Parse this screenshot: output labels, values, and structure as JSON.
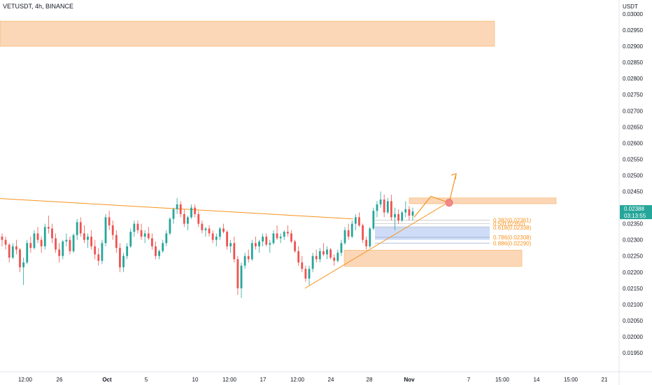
{
  "header": {
    "symbol_title": "VETUSDT, 4h, BINANCE"
  },
  "colors": {
    "up": "#26a69a",
    "down": "#ef5350",
    "accent": "#f7931e",
    "zone_fill": "#f9c9a0",
    "fib_blue": "#c5d6f6",
    "axis": "#131722"
  },
  "chart_data": {
    "type": "candlestick",
    "title": "VETUSDT, 4h, BINANCE",
    "ylabel": "USDT",
    "ylim": [
      0.0195,
      0.0302
    ],
    "y_ticks": [
      "0.03000",
      "0.02950",
      "0.02900",
      "0.02850",
      "0.02800",
      "0.02750",
      "0.02700",
      "0.02650",
      "0.02600",
      "0.02550",
      "0.02500",
      "0.02450",
      "0.02400",
      "0.02350",
      "0.02300",
      "0.02250",
      "0.02200",
      "0.02150",
      "0.02100",
      "0.02050",
      "0.02000",
      "0.01950"
    ],
    "x_ticks": [
      "12:00",
      "26",
      "Oct",
      "5",
      "10",
      "12:00",
      "17",
      "12:00",
      "24",
      "28",
      "Nov",
      "7",
      "15:00",
      "14",
      "15:00",
      "21"
    ],
    "current_price": "0.02388",
    "countdown": "03:13:55",
    "candles": [
      [
        0.0231,
        0.0232,
        0.0228,
        0.023
      ],
      [
        0.023,
        0.0231,
        0.0227,
        0.02285
      ],
      [
        0.02285,
        0.0229,
        0.0223,
        0.02245
      ],
      [
        0.02245,
        0.0229,
        0.0224,
        0.0228
      ],
      [
        0.0228,
        0.023,
        0.02255,
        0.0227
      ],
      [
        0.0227,
        0.02275,
        0.022,
        0.02215
      ],
      [
        0.02215,
        0.02245,
        0.0216,
        0.0223
      ],
      [
        0.0223,
        0.023,
        0.02225,
        0.0229
      ],
      [
        0.0229,
        0.0231,
        0.0226,
        0.02275
      ],
      [
        0.02275,
        0.0233,
        0.0227,
        0.0232
      ],
      [
        0.0232,
        0.0234,
        0.0229,
        0.023
      ],
      [
        0.023,
        0.0231,
        0.0226,
        0.0228
      ],
      [
        0.0228,
        0.0235,
        0.0227,
        0.0234
      ],
      [
        0.0234,
        0.02375,
        0.0232,
        0.02335
      ],
      [
        0.02335,
        0.0235,
        0.0229,
        0.02305
      ],
      [
        0.02305,
        0.0232,
        0.0226,
        0.0227
      ],
      [
        0.0227,
        0.0229,
        0.0223,
        0.0225
      ],
      [
        0.0225,
        0.023,
        0.0224,
        0.02295
      ],
      [
        0.02295,
        0.0232,
        0.0228,
        0.023
      ],
      [
        0.023,
        0.0231,
        0.02255,
        0.02265
      ],
      [
        0.02265,
        0.0232,
        0.0226,
        0.02315
      ],
      [
        0.02315,
        0.02365,
        0.023,
        0.02355
      ],
      [
        0.02355,
        0.0237,
        0.0231,
        0.0232
      ],
      [
        0.0232,
        0.02345,
        0.0229,
        0.023
      ],
      [
        0.023,
        0.0232,
        0.02275,
        0.0231
      ],
      [
        0.0231,
        0.0233,
        0.0227,
        0.0228
      ],
      [
        0.0228,
        0.023,
        0.0224,
        0.02255
      ],
      [
        0.02255,
        0.02275,
        0.0222,
        0.02235
      ],
      [
        0.02235,
        0.023,
        0.02225,
        0.0229
      ],
      [
        0.0229,
        0.0238,
        0.0228,
        0.0237
      ],
      [
        0.0237,
        0.0239,
        0.0233,
        0.02345
      ],
      [
        0.02345,
        0.0236,
        0.023,
        0.02315
      ],
      [
        0.02315,
        0.0233,
        0.0226,
        0.02275
      ],
      [
        0.02275,
        0.0229,
        0.022,
        0.02215
      ],
      [
        0.02215,
        0.0226,
        0.022,
        0.0225
      ],
      [
        0.0225,
        0.0229,
        0.0224,
        0.0228
      ],
      [
        0.0228,
        0.02335,
        0.02275,
        0.02325
      ],
      [
        0.02325,
        0.0236,
        0.0231,
        0.0235
      ],
      [
        0.0235,
        0.0236,
        0.0232,
        0.0233
      ],
      [
        0.0233,
        0.0235,
        0.023,
        0.0231
      ],
      [
        0.0231,
        0.0233,
        0.0229,
        0.0232
      ],
      [
        0.0232,
        0.0234,
        0.023,
        0.02305
      ],
      [
        0.02305,
        0.0232,
        0.0227,
        0.0228
      ],
      [
        0.0228,
        0.02295,
        0.0224,
        0.0225
      ],
      [
        0.0225,
        0.0227,
        0.0224,
        0.02265
      ],
      [
        0.02265,
        0.023,
        0.0226,
        0.0229
      ],
      [
        0.0229,
        0.0233,
        0.0228,
        0.0232
      ],
      [
        0.0232,
        0.0237,
        0.02315,
        0.02365
      ],
      [
        0.02365,
        0.024,
        0.0235,
        0.02395
      ],
      [
        0.02395,
        0.0243,
        0.0238,
        0.0241
      ],
      [
        0.0241,
        0.0242,
        0.0237,
        0.0238
      ],
      [
        0.0238,
        0.02395,
        0.0234,
        0.0235
      ],
      [
        0.0235,
        0.02375,
        0.0233,
        0.0237
      ],
      [
        0.0237,
        0.0241,
        0.02365,
        0.024
      ],
      [
        0.024,
        0.0241,
        0.0237,
        0.0238
      ],
      [
        0.0238,
        0.0239,
        0.0234,
        0.0235
      ],
      [
        0.0235,
        0.0236,
        0.0232,
        0.0233
      ],
      [
        0.0233,
        0.0234,
        0.0231,
        0.02335
      ],
      [
        0.02335,
        0.02345,
        0.0231,
        0.0232
      ],
      [
        0.0232,
        0.0233,
        0.0229,
        0.023
      ],
      [
        0.023,
        0.0232,
        0.0228,
        0.0231
      ],
      [
        0.0231,
        0.0234,
        0.023,
        0.02335
      ],
      [
        0.02335,
        0.0235,
        0.0232,
        0.02325
      ],
      [
        0.02325,
        0.0233,
        0.0227,
        0.0228
      ],
      [
        0.0228,
        0.023,
        0.0226,
        0.0229
      ],
      [
        0.0229,
        0.0231,
        0.0223,
        0.0224
      ],
      [
        0.0224,
        0.0225,
        0.0213,
        0.0215
      ],
      [
        0.0215,
        0.0223,
        0.0212,
        0.0222
      ],
      [
        0.0222,
        0.0226,
        0.0221,
        0.0225
      ],
      [
        0.0225,
        0.0227,
        0.0223,
        0.0224
      ],
      [
        0.0224,
        0.023,
        0.02235,
        0.0229
      ],
      [
        0.0229,
        0.0231,
        0.0227,
        0.0228
      ],
      [
        0.0228,
        0.023,
        0.0226,
        0.02295
      ],
      [
        0.02295,
        0.0232,
        0.0228,
        0.0231
      ],
      [
        0.0231,
        0.0232,
        0.0228,
        0.02285
      ],
      [
        0.02285,
        0.023,
        0.0226,
        0.0229
      ],
      [
        0.0229,
        0.0233,
        0.02285,
        0.0232
      ],
      [
        0.0232,
        0.02345,
        0.023,
        0.02305
      ],
      [
        0.02305,
        0.0232,
        0.0229,
        0.0231
      ],
      [
        0.0231,
        0.0233,
        0.023,
        0.02325
      ],
      [
        0.02325,
        0.02345,
        0.0231,
        0.0232
      ],
      [
        0.0232,
        0.0233,
        0.0229,
        0.02295
      ],
      [
        0.02295,
        0.023,
        0.0226,
        0.02265
      ],
      [
        0.02265,
        0.0228,
        0.0222,
        0.0223
      ],
      [
        0.0223,
        0.0225,
        0.022,
        0.0221
      ],
      [
        0.0221,
        0.0222,
        0.0217,
        0.0218
      ],
      [
        0.0218,
        0.0222,
        0.0216,
        0.0221
      ],
      [
        0.0221,
        0.0226,
        0.022,
        0.0225
      ],
      [
        0.0225,
        0.0227,
        0.0223,
        0.0224
      ],
      [
        0.0224,
        0.02275,
        0.0223,
        0.02265
      ],
      [
        0.02265,
        0.0229,
        0.0225,
        0.02255
      ],
      [
        0.02255,
        0.0228,
        0.0224,
        0.0227
      ],
      [
        0.0227,
        0.02275,
        0.0224,
        0.02245
      ],
      [
        0.02245,
        0.02255,
        0.0222,
        0.02235
      ],
      [
        0.02235,
        0.0227,
        0.0223,
        0.0226
      ],
      [
        0.0226,
        0.023,
        0.0225,
        0.0229
      ],
      [
        0.0229,
        0.0234,
        0.02285,
        0.0233
      ],
      [
        0.0233,
        0.0235,
        0.023,
        0.0231
      ],
      [
        0.0231,
        0.0236,
        0.02305,
        0.0235
      ],
      [
        0.0235,
        0.0238,
        0.0233,
        0.0237
      ],
      [
        0.0237,
        0.02385,
        0.0234,
        0.02345
      ],
      [
        0.02345,
        0.0235,
        0.0229,
        0.023
      ],
      [
        0.023,
        0.0231,
        0.0227,
        0.0228
      ],
      [
        0.0228,
        0.0234,
        0.02275,
        0.02335
      ],
      [
        0.02335,
        0.024,
        0.0233,
        0.0239
      ],
      [
        0.0239,
        0.0242,
        0.0237,
        0.0241
      ],
      [
        0.0241,
        0.0245,
        0.024,
        0.02425
      ],
      [
        0.02425,
        0.0244,
        0.0237,
        0.02385
      ],
      [
        0.02385,
        0.0243,
        0.0238,
        0.0242
      ],
      [
        0.0242,
        0.0244,
        0.0236,
        0.0237
      ],
      [
        0.0237,
        0.024,
        0.0233,
        0.0238
      ],
      [
        0.0238,
        0.02395,
        0.0235,
        0.0236
      ],
      [
        0.0236,
        0.0239,
        0.02355,
        0.02385
      ],
      [
        0.02385,
        0.0242,
        0.0237,
        0.02395
      ],
      [
        0.02395,
        0.02405,
        0.0236,
        0.02375
      ],
      [
        0.02375,
        0.024,
        0.0236,
        0.02388
      ]
    ],
    "resistance_line": [
      [
        0,
        0.02428
      ],
      [
        505,
        0.02365
      ]
    ],
    "support_line": [
      [
        436,
        0.0215
      ],
      [
        636,
        0.0241
      ]
    ],
    "projection_path": [
      [
        592,
        0.0237
      ],
      [
        616,
        0.02435
      ],
      [
        642,
        0.02415
      ],
      [
        652,
        0.02505
      ]
    ],
    "zones": [
      {
        "y1": 0.02978,
        "y2": 0.029,
        "x1": 0,
        "x2": 707
      },
      {
        "y1": 0.0243,
        "y2": 0.02412,
        "x1": 585,
        "x2": 795
      },
      {
        "y1": 0.02268,
        "y2": 0.02218,
        "x1": 492,
        "x2": 746
      }
    ],
    "fib_box": {
      "y1": 0.02342,
      "y2": 0.023,
      "x1": 536,
      "x2": 700
    },
    "fib_levels": [
      {
        "label": "0.382(0.02361)",
        "value": 0.02361
      },
      {
        "label": "0.5(0.02350)",
        "value": 0.0235
      },
      {
        "label": "0.618(0.02338)",
        "value": 0.02338
      },
      {
        "label": "0.786(0.02308)",
        "value": 0.02308
      },
      {
        "label": "0.886(0.02290)",
        "value": 0.0229
      }
    ],
    "target_marker": 0.02415
  }
}
